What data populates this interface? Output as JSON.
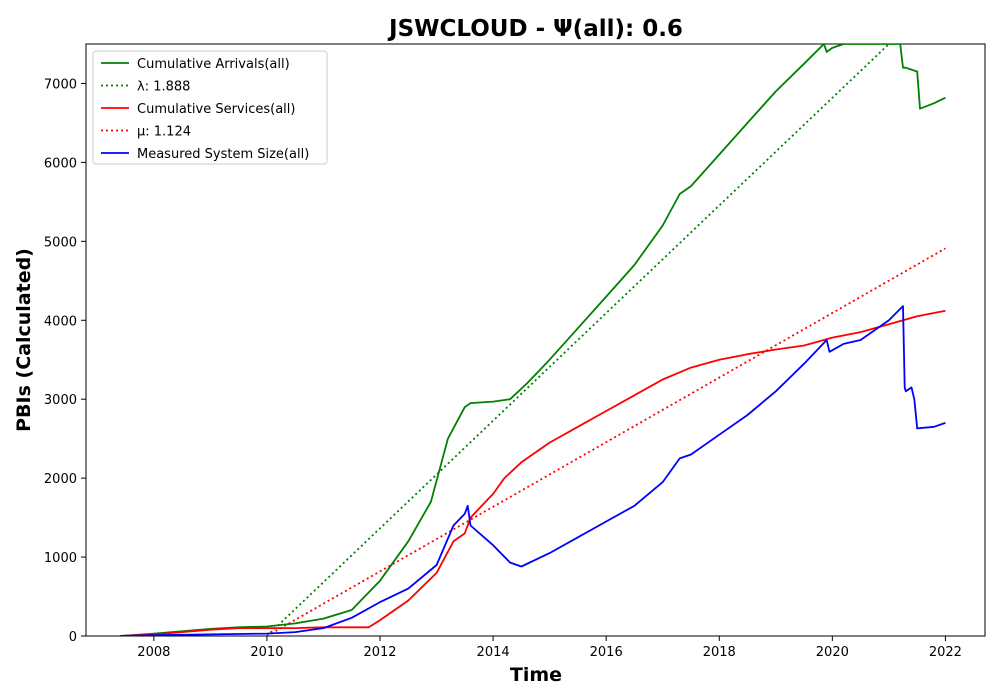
{
  "chart_data": {
    "type": "line",
    "title": "JSWCLOUD -  Ψ(all): 0.6",
    "xlabel": "Time",
    "ylabel": "PBIs (Calculated)",
    "xlim": [
      2006.8,
      2022.7
    ],
    "ylim": [
      0,
      7500
    ],
    "xticks": [
      2008,
      2010,
      2012,
      2014,
      2016,
      2018,
      2020,
      2022
    ],
    "yticks": [
      0,
      1000,
      2000,
      3000,
      4000,
      5000,
      6000,
      7000
    ],
    "grid": false,
    "legend_position": "top-left",
    "series": [
      {
        "name": "Cumulative Arrivals(all)",
        "style": "solid",
        "color": "#008000",
        "x": [
          2007.4,
          2008.0,
          2008.5,
          2009.0,
          2009.5,
          2010.0,
          2010.5,
          2011.0,
          2011.5,
          2012.0,
          2012.5,
          2012.9,
          2013.2,
          2013.5,
          2013.6,
          2014.0,
          2014.3,
          2014.6,
          2015.0,
          2015.5,
          2016.0,
          2016.5,
          2017.0,
          2017.3,
          2017.5,
          2018.0,
          2018.5,
          2019.0,
          2019.5,
          2019.85,
          2019.9,
          2020.0,
          2020.2,
          2020.5,
          2020.8,
          2021.0,
          2021.2,
          2021.25,
          2021.3,
          2021.5,
          2021.55,
          2021.8,
          2022.0
        ],
        "y": [
          0,
          30,
          60,
          90,
          110,
          120,
          160,
          220,
          330,
          700,
          1200,
          1700,
          2500,
          2900,
          2950,
          2970,
          3000,
          3200,
          3500,
          3900,
          4300,
          4700,
          5200,
          5600,
          5700,
          6100,
          6500,
          6900,
          7250,
          7500,
          7400,
          7450,
          7500,
          7500,
          7500,
          7500,
          7500,
          7200,
          7200,
          7150,
          6680,
          6750,
          6820
        ]
      },
      {
        "name": "λ: 1.888",
        "style": "dotted",
        "color": "#008000",
        "x": [
          2010.0,
          2021.0
        ],
        "y": [
          0,
          7500
        ]
      },
      {
        "name": "Cumulative Services(all)",
        "style": "solid",
        "color": "#ff0000",
        "x": [
          2007.4,
          2008.0,
          2008.5,
          2009.0,
          2009.5,
          2010.0,
          2010.5,
          2011.0,
          2011.5,
          2011.8,
          2012.0,
          2012.5,
          2013.0,
          2013.3,
          2013.5,
          2013.6,
          2014.0,
          2014.2,
          2014.5,
          2015.0,
          2015.5,
          2016.0,
          2016.5,
          2017.0,
          2017.5,
          2018.0,
          2018.5,
          2019.0,
          2019.5,
          2020.0,
          2020.5,
          2021.0,
          2021.5,
          2022.0
        ],
        "y": [
          0,
          20,
          50,
          80,
          100,
          100,
          100,
          110,
          110,
          110,
          200,
          450,
          800,
          1200,
          1300,
          1500,
          1800,
          2000,
          2200,
          2450,
          2650,
          2850,
          3050,
          3250,
          3400,
          3500,
          3570,
          3630,
          3680,
          3780,
          3850,
          3950,
          4050,
          4120
        ]
      },
      {
        "name": "μ: 1.124",
        "style": "dotted",
        "color": "#ff0000",
        "x": [
          2010.0,
          2022.0
        ],
        "y": [
          0,
          4910
        ]
      },
      {
        "name": "Measured System Size(all)",
        "style": "solid",
        "color": "#0000ff",
        "x": [
          2007.4,
          2008.0,
          2009.0,
          2010.0,
          2010.5,
          2011.0,
          2011.5,
          2012.0,
          2012.5,
          2013.0,
          2013.3,
          2013.5,
          2013.55,
          2013.6,
          2014.0,
          2014.3,
          2014.5,
          2015.0,
          2015.5,
          2016.0,
          2016.5,
          2017.0,
          2017.3,
          2017.5,
          2018.0,
          2018.5,
          2019.0,
          2019.5,
          2019.9,
          2019.95,
          2020.2,
          2020.5,
          2021.0,
          2021.25,
          2021.28,
          2021.3,
          2021.4,
          2021.45,
          2021.5,
          2021.8,
          2022.0
        ],
        "y": [
          0,
          10,
          20,
          30,
          50,
          100,
          230,
          430,
          600,
          900,
          1400,
          1550,
          1650,
          1400,
          1150,
          930,
          880,
          1050,
          1250,
          1450,
          1650,
          1950,
          2250,
          2300,
          2550,
          2800,
          3100,
          3450,
          3750,
          3600,
          3700,
          3750,
          4000,
          4180,
          3150,
          3100,
          3150,
          3000,
          2630,
          2650,
          2700
        ]
      }
    ]
  }
}
